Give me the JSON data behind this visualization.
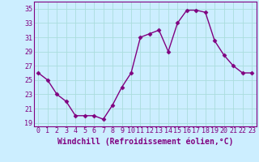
{
  "x": [
    0,
    1,
    2,
    3,
    4,
    5,
    6,
    7,
    8,
    9,
    10,
    11,
    12,
    13,
    14,
    15,
    16,
    17,
    18,
    19,
    20,
    21,
    22,
    23
  ],
  "y": [
    26,
    25,
    23,
    22,
    20,
    20,
    20,
    19.5,
    21.5,
    24,
    26,
    31,
    31.5,
    32,
    29,
    33,
    34.8,
    34.8,
    34.5,
    30.5,
    28.5,
    27,
    26,
    26
  ],
  "line_color": "#800080",
  "marker": "D",
  "markersize": 2.5,
  "linewidth": 1.0,
  "xlabel": "Windchill (Refroidissement éolien,°C)",
  "xlim": [
    -0.5,
    23.5
  ],
  "ylim": [
    18.5,
    36
  ],
  "yticks": [
    19,
    21,
    23,
    25,
    27,
    29,
    31,
    33,
    35
  ],
  "xtick_labels": [
    "0",
    "1",
    "2",
    "3",
    "4",
    "5",
    "6",
    "7",
    "8",
    "9",
    "10",
    "11",
    "12",
    "13",
    "14",
    "15",
    "16",
    "17",
    "18",
    "19",
    "20",
    "21",
    "22",
    "23"
  ],
  "bg_color": "#cceeff",
  "grid_color": "#aadddd",
  "spine_color": "#800080",
  "tick_color": "#800080",
  "label_color": "#800080",
  "xlabel_fontsize": 7,
  "tick_fontsize": 6
}
